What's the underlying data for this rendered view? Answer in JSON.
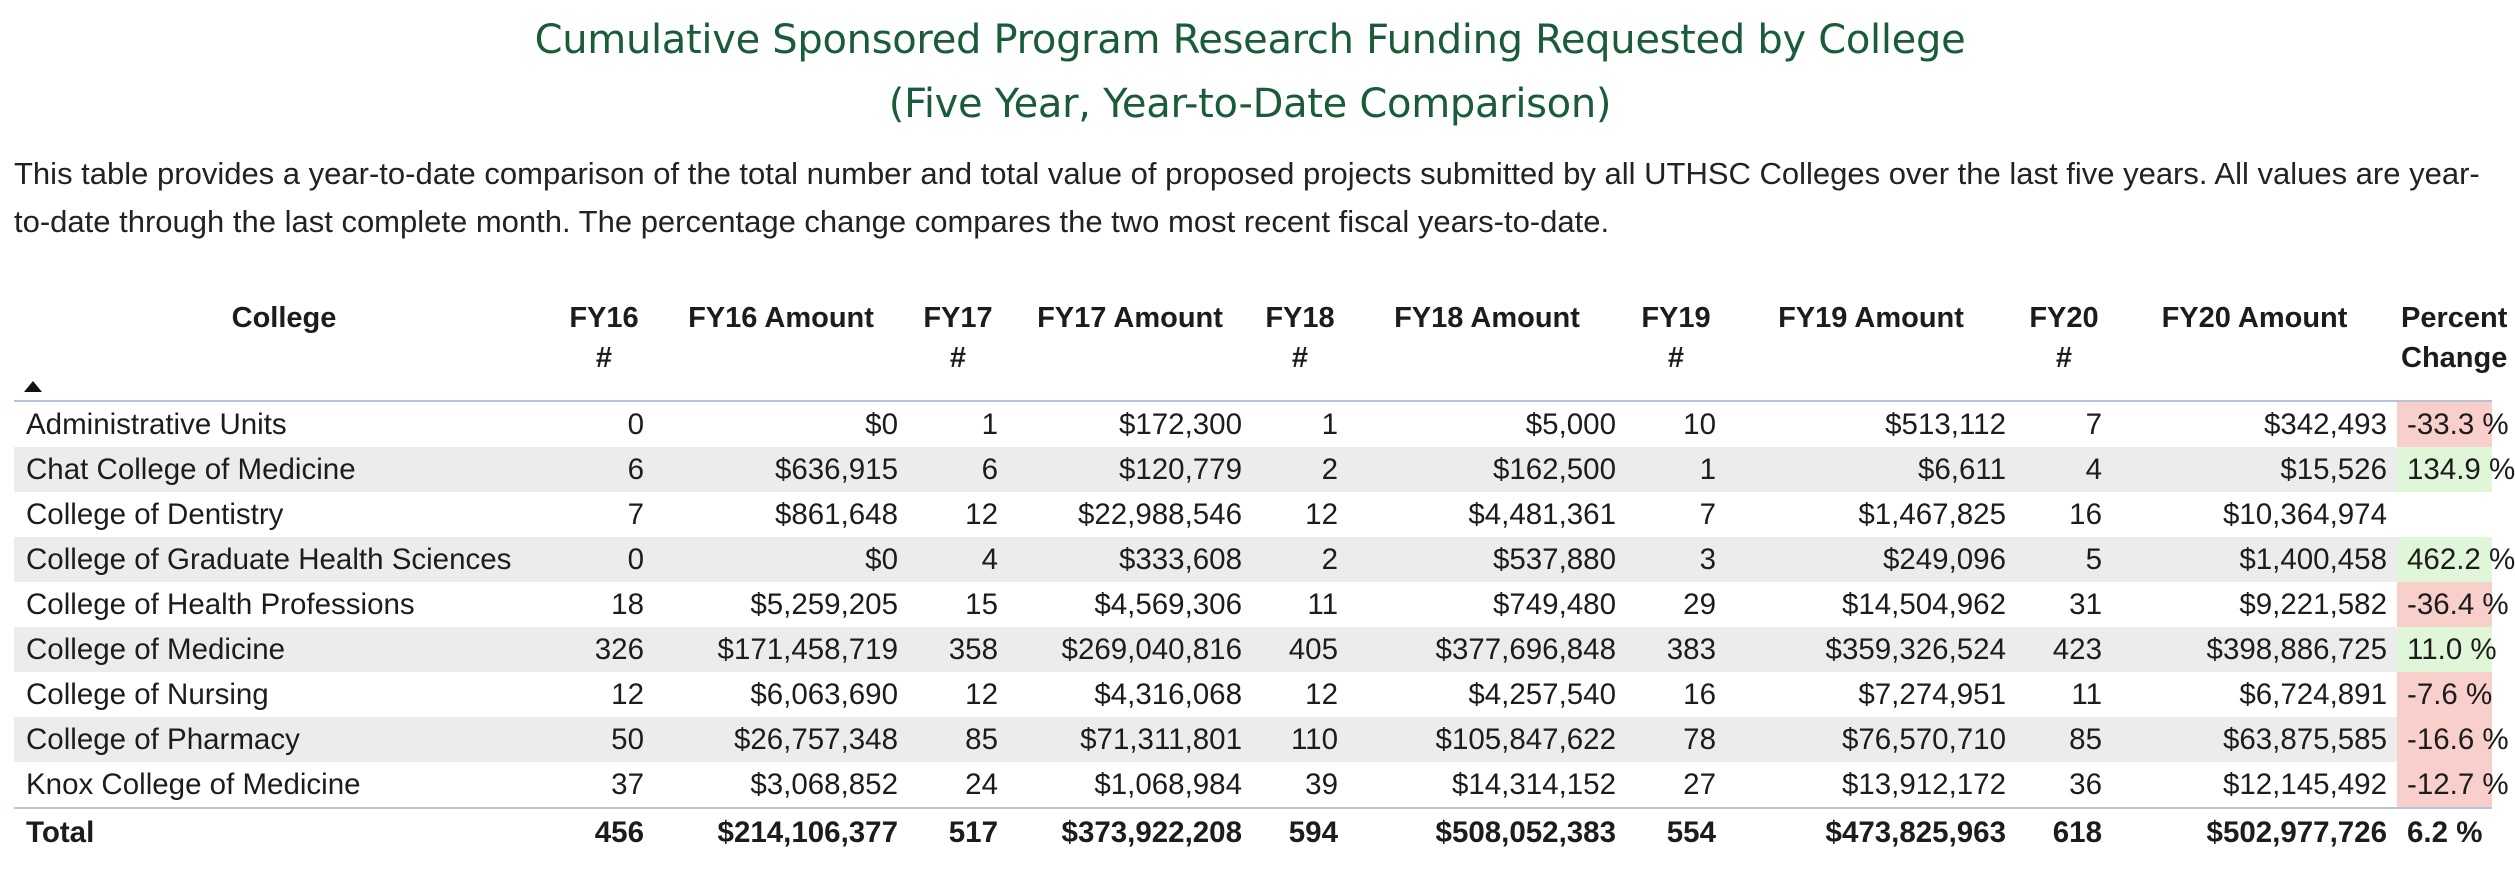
{
  "title": {
    "line1": "Cumulative Sponsored Program Research Funding Requested by College",
    "line2": "(Five Year, Year-to-Date Comparison)"
  },
  "description": "This table provides a year-to-date comparison of the total number and total value of proposed projects submitted by all UTHSC Colleges over the last five years. All values are year-to-date through the last complete month. The percentage change compares the two most recent fiscal years-to-date.",
  "colors": {
    "title": "#1a5c3a",
    "negative": "#f8cfcb",
    "positive": "#dff6d8",
    "stripe": "#ececec"
  },
  "headers": {
    "college": "College",
    "fy16_count": [
      "FY16",
      "#"
    ],
    "fy16_amount": "FY16 Amount",
    "fy17_count": [
      "FY17",
      "#"
    ],
    "fy17_amount": "FY17 Amount",
    "fy18_count": [
      "FY18",
      "#"
    ],
    "fy18_amount": "FY18 Amount",
    "fy19_count": [
      "FY19",
      "#"
    ],
    "fy19_amount": "FY19 Amount",
    "fy20_count": [
      "FY20",
      "#"
    ],
    "fy20_amount": "FY20 Amount",
    "percent_change": [
      "Percent",
      "Change"
    ]
  },
  "sort_icon": "sort-ascending-icon",
  "rows": [
    [
      "Administrative Units",
      "0",
      "$0",
      "1",
      "$172,300",
      "1",
      "$5,000",
      "10",
      "$513,112",
      "7",
      "$342,493",
      "-33.3 %",
      "neg"
    ],
    [
      "Chat College of Medicine",
      "6",
      "$636,915",
      "6",
      "$120,779",
      "2",
      "$162,500",
      "1",
      "$6,611",
      "4",
      "$15,526",
      "134.9 %",
      "pos"
    ],
    [
      "College of Dentistry",
      "7",
      "$861,648",
      "12",
      "$22,988,546",
      "12",
      "$4,481,361",
      "7",
      "$1,467,825",
      "16",
      "$10,364,974",
      "",
      "none"
    ],
    [
      "College of Graduate Health Sciences",
      "0",
      "$0",
      "4",
      "$333,608",
      "2",
      "$537,880",
      "3",
      "$249,096",
      "5",
      "$1,400,458",
      "462.2 %",
      "pos"
    ],
    [
      "College of Health Professions",
      "18",
      "$5,259,205",
      "15",
      "$4,569,306",
      "11",
      "$749,480",
      "29",
      "$14,504,962",
      "31",
      "$9,221,582",
      "-36.4 %",
      "neg"
    ],
    [
      "College of Medicine",
      "326",
      "$171,458,719",
      "358",
      "$269,040,816",
      "405",
      "$377,696,848",
      "383",
      "$359,326,524",
      "423",
      "$398,886,725",
      "11.0 %",
      "pos"
    ],
    [
      "College of Nursing",
      "12",
      "$6,063,690",
      "12",
      "$4,316,068",
      "12",
      "$4,257,540",
      "16",
      "$7,274,951",
      "11",
      "$6,724,891",
      "-7.6 %",
      "neg"
    ],
    [
      "College of Pharmacy",
      "50",
      "$26,757,348",
      "85",
      "$71,311,801",
      "110",
      "$105,847,622",
      "78",
      "$76,570,710",
      "85",
      "$63,875,585",
      "-16.6 %",
      "neg"
    ],
    [
      "Knox College of Medicine",
      "37",
      "$3,068,852",
      "24",
      "$1,068,984",
      "39",
      "$14,314,152",
      "27",
      "$13,912,172",
      "36",
      "$12,145,492",
      "-12.7 %",
      "neg"
    ]
  ],
  "total": [
    "Total",
    "456",
    "$214,106,377",
    "517",
    "$373,922,208",
    "594",
    "$508,052,383",
    "554",
    "$473,825,963",
    "618",
    "$502,977,726",
    "6.2 %"
  ]
}
